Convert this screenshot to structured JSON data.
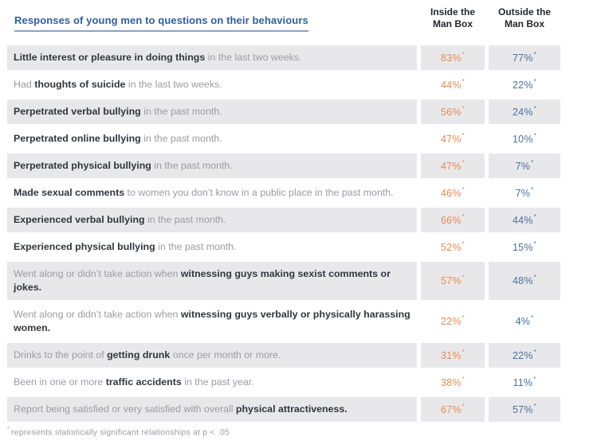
{
  "header": {
    "title": "Responses of young men to questions on their behaviours",
    "inside_label": "Inside the Man Box",
    "outside_label": "Outside the Man Box"
  },
  "sig_marker": "*",
  "footnote": {
    "marker": "*",
    "text": "represents statistically significant relationships at p < .05"
  },
  "colors": {
    "inside_value": "#e78a54",
    "outside_value": "#4e6f9b",
    "row_stripe": "#e8e8ea",
    "title_blue": "#2e5f9e",
    "title_underline": "#8aa3c6",
    "question_bold": "#32353d",
    "question_normal": "#9b9ba2",
    "header_text": "#23272f",
    "footnote_text": "#9b9ba2"
  },
  "rows": [
    {
      "question": [
        {
          "text": "Little interest or pleasure in doing things",
          "bold": true
        },
        {
          "text": " in the last two weeks.",
          "bold": false
        }
      ],
      "inside": "83%",
      "outside": "77%"
    },
    {
      "question": [
        {
          "text": "Had ",
          "bold": false
        },
        {
          "text": "thoughts of suicide",
          "bold": true
        },
        {
          "text": " in the last two weeks.",
          "bold": false
        }
      ],
      "inside": "44%",
      "outside": "22%"
    },
    {
      "question": [
        {
          "text": "Perpetrated verbal bullying",
          "bold": true
        },
        {
          "text": " in the past month.",
          "bold": false
        }
      ],
      "inside": "56%",
      "outside": "24%"
    },
    {
      "question": [
        {
          "text": "Perpetrated online bullying",
          "bold": true
        },
        {
          "text": " in the past month.",
          "bold": false
        }
      ],
      "inside": "47%",
      "outside": "10%"
    },
    {
      "question": [
        {
          "text": "Perpetrated physical bullying",
          "bold": true
        },
        {
          "text": " in the past month.",
          "bold": false
        }
      ],
      "inside": "47%",
      "outside": "7%"
    },
    {
      "question": [
        {
          "text": "Made sexual comments",
          "bold": true
        },
        {
          "text": " to women you don’t know in a public place in the past month.",
          "bold": false
        }
      ],
      "inside": "46%",
      "outside": "7%"
    },
    {
      "question": [
        {
          "text": "Experienced verbal bullying",
          "bold": true
        },
        {
          "text": " in the past month.",
          "bold": false
        }
      ],
      "inside": "66%",
      "outside": "44%"
    },
    {
      "question": [
        {
          "text": "Experienced physical bullying",
          "bold": true
        },
        {
          "text": " in the past month.",
          "bold": false
        }
      ],
      "inside": "52%",
      "outside": "15%"
    },
    {
      "question": [
        {
          "text": "Went along or didn’t take action when ",
          "bold": false
        },
        {
          "text": "witnessing guys making sexist comments or jokes.",
          "bold": true
        }
      ],
      "inside": "57%",
      "outside": "48%"
    },
    {
      "question": [
        {
          "text": "Went along or didn’t take action when ",
          "bold": false
        },
        {
          "text": "witnessing guys verbally or physically harassing women.",
          "bold": true
        }
      ],
      "inside": "22%",
      "outside": "4%"
    },
    {
      "question": [
        {
          "text": "Drinks to the point of ",
          "bold": false
        },
        {
          "text": "getting drunk",
          "bold": true
        },
        {
          "text": " once per month or more.",
          "bold": false
        }
      ],
      "inside": "31%",
      "outside": "22%"
    },
    {
      "question": [
        {
          "text": "Been in one or more ",
          "bold": false
        },
        {
          "text": "traffic accidents",
          "bold": true
        },
        {
          "text": " in the past year.",
          "bold": false
        }
      ],
      "inside": "38%",
      "outside": "11%"
    },
    {
      "question": [
        {
          "text": "Report being satisfied or very satisfied with overall ",
          "bold": false
        },
        {
          "text": "physical attractiveness.",
          "bold": true
        }
      ],
      "inside": "67%",
      "outside": "57%"
    }
  ],
  "chart_data": {
    "type": "table",
    "title": "Responses of young men to questions on their behaviours",
    "columns": [
      "Inside the Man Box",
      "Outside the Man Box"
    ],
    "rows": [
      {
        "label": "Little interest or pleasure in doing things in the last two weeks.",
        "inside_pct": 83,
        "outside_pct": 77
      },
      {
        "label": "Had thoughts of suicide in the last two weeks.",
        "inside_pct": 44,
        "outside_pct": 22
      },
      {
        "label": "Perpetrated verbal bullying in the past month.",
        "inside_pct": 56,
        "outside_pct": 24
      },
      {
        "label": "Perpetrated online bullying in the past month.",
        "inside_pct": 47,
        "outside_pct": 10
      },
      {
        "label": "Perpetrated physical bullying in the past month.",
        "inside_pct": 47,
        "outside_pct": 7
      },
      {
        "label": "Made sexual comments to women you don’t know in a public place in the past month.",
        "inside_pct": 46,
        "outside_pct": 7
      },
      {
        "label": "Experienced verbal bullying in the past month.",
        "inside_pct": 66,
        "outside_pct": 44
      },
      {
        "label": "Experienced physical bullying in the past month.",
        "inside_pct": 52,
        "outside_pct": 15
      },
      {
        "label": "Went along or didn’t take action when witnessing guys making sexist comments or jokes.",
        "inside_pct": 57,
        "outside_pct": 48
      },
      {
        "label": "Went along or didn’t take action when witnessing guys verbally or physically harassing women.",
        "inside_pct": 22,
        "outside_pct": 4
      },
      {
        "label": "Drinks to the point of getting drunk once per month or more.",
        "inside_pct": 31,
        "outside_pct": 22
      },
      {
        "label": "Been in one or more traffic accidents in the past year.",
        "inside_pct": 38,
        "outside_pct": 11
      },
      {
        "label": "Report being satisfied or very satisfied with overall physical attractiveness.",
        "inside_pct": 67,
        "outside_pct": 57
      }
    ],
    "note": "* represents statistically significant relationships at p < .05",
    "all_values_significant": true
  }
}
